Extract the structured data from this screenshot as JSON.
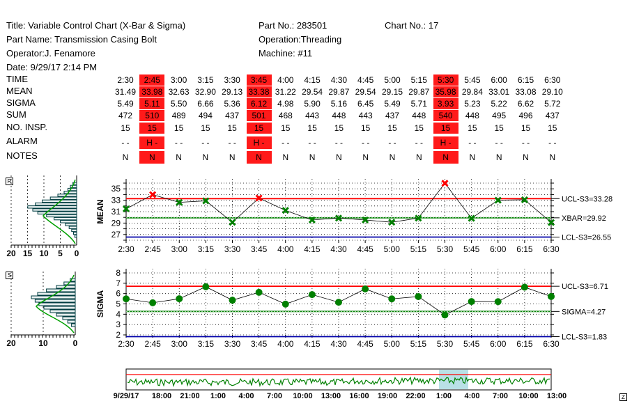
{
  "header": {
    "title": "Title: Variable Control Chart (X-Bar & Sigma)",
    "part_name": "Part Name: Transmission Casing Bolt",
    "operator": "Operator:J. Fenamore",
    "date": "Date: 9/29/17 2:14 PM",
    "part_no": "Part No.: 283501",
    "operation": "Operation:Threading",
    "machine": "Machine: #11",
    "chart_no": "Chart No.: 17"
  },
  "table": {
    "row_labels": [
      "TIME",
      "MEAN",
      "SIGMA",
      "SUM",
      "NO. INSP.",
      "ALARM",
      "NOTES"
    ],
    "times": [
      "2:30",
      "2:45",
      "3:00",
      "3:15",
      "3:30",
      "3:45",
      "4:00",
      "4:15",
      "4:30",
      "4:45",
      "5:00",
      "5:15",
      "5:30",
      "5:45",
      "6:00",
      "6:15",
      "6:30"
    ],
    "mean": [
      "31.49",
      "33.98",
      "32.63",
      "32.90",
      "29.13",
      "33.38",
      "31.22",
      "29.54",
      "29.87",
      "29.54",
      "29.15",
      "29.87",
      "35.98",
      "29.84",
      "33.01",
      "33.08",
      "29.10"
    ],
    "sigma": [
      "5.49",
      "5.11",
      "5.50",
      "6.66",
      "5.36",
      "6.12",
      "4.98",
      "5.90",
      "5.16",
      "6.45",
      "5.49",
      "5.71",
      "3.93",
      "5.23",
      "5.22",
      "6.62",
      "5.72"
    ],
    "sum": [
      "472",
      "510",
      "489",
      "494",
      "437",
      "501",
      "468",
      "443",
      "448",
      "443",
      "437",
      "448",
      "540",
      "448",
      "495",
      "496",
      "437"
    ],
    "ninsp": [
      "15",
      "15",
      "15",
      "15",
      "15",
      "15",
      "15",
      "15",
      "15",
      "15",
      "15",
      "15",
      "15",
      "15",
      "15",
      "15",
      "15"
    ],
    "alarm": [
      "- -",
      "H -",
      "- -",
      "- -",
      "- -",
      "H -",
      "- -",
      "- -",
      "- -",
      "- -",
      "- -",
      "- -",
      "H -",
      "- -",
      "- -",
      "- -",
      "- -"
    ],
    "notes": [
      "N",
      "N",
      "N",
      "N",
      "N",
      "N",
      "N",
      "N",
      "N",
      "N",
      "N",
      "N",
      "N",
      "N",
      "N",
      "N",
      "N"
    ],
    "alarm_columns": [
      1,
      5,
      12
    ]
  },
  "buttons": {
    "mean_btn": "R",
    "sigma_btn": "S",
    "zoom_btn": "Z"
  },
  "chart_data": [
    {
      "type": "line",
      "ylabel": "MEAN",
      "ylim": [
        26,
        36
      ],
      "yticks": [
        "27",
        "29",
        "31",
        "33",
        "35"
      ],
      "categories": [
        "2:30",
        "2:45",
        "3:00",
        "3:15",
        "3:30",
        "3:45",
        "4:00",
        "4:15",
        "4:30",
        "4:45",
        "5:00",
        "5:15",
        "5:30",
        "5:45",
        "6:00",
        "6:15",
        "6:30"
      ],
      "values": [
        31.49,
        33.98,
        32.63,
        32.9,
        29.13,
        33.38,
        31.22,
        29.54,
        29.87,
        29.54,
        29.15,
        29.87,
        35.98,
        29.84,
        33.01,
        33.08,
        29.1
      ],
      "limits": [
        {
          "label": "UCL-S3=33.28",
          "value": 33.28,
          "color": "#ff0000"
        },
        {
          "label": "XBAR=29.92",
          "value": 29.92,
          "color": "#008000"
        },
        {
          "label": "LCL-S3=26.55",
          "value": 26.55,
          "color": "#0000aa"
        }
      ],
      "alarm_points": [
        1,
        5,
        12
      ],
      "grid": true
    },
    {
      "type": "line",
      "ylabel": "SIGMA",
      "ylim": [
        2,
        8
      ],
      "yticks": [
        "2",
        "3",
        "4",
        "5",
        "6",
        "7",
        "8"
      ],
      "categories": [
        "2:30",
        "2:45",
        "3:00",
        "3:15",
        "3:30",
        "3:45",
        "4:00",
        "4:15",
        "4:30",
        "4:45",
        "5:00",
        "5:15",
        "5:30",
        "5:45",
        "6:00",
        "6:15",
        "6:30"
      ],
      "values": [
        5.49,
        5.11,
        5.5,
        6.66,
        5.36,
        6.12,
        4.98,
        5.9,
        5.16,
        6.45,
        5.49,
        5.71,
        3.93,
        5.23,
        5.22,
        6.62,
        5.72
      ],
      "limits": [
        {
          "label": "UCL-S3=6.71",
          "value": 6.71,
          "color": "#ff0000"
        },
        {
          "label": "SIGMA=4.27",
          "value": 4.27,
          "color": "#008000"
        },
        {
          "label": "LCL-S3=1.83",
          "value": 1.83,
          "color": "#0000aa"
        }
      ],
      "grid": true
    },
    {
      "type": "bar",
      "title": "mean histogram",
      "xticks": [
        "20",
        "15",
        "10",
        "5",
        "0"
      ],
      "xlim": [
        0,
        20
      ]
    },
    {
      "type": "bar",
      "title": "sigma histogram",
      "xticks": [
        "20",
        "10",
        "0"
      ],
      "xlim": [
        0,
        20
      ]
    },
    {
      "type": "line",
      "title": "overview",
      "xticks": [
        "9/29/17",
        "18:00",
        "21:00",
        "1:00",
        "4:00",
        "7:00",
        "10:00",
        "13:00",
        "16:00",
        "19:00",
        "22:00",
        "1:00",
        "4:00",
        "7:00",
        "10:00",
        "13:00"
      ]
    }
  ]
}
